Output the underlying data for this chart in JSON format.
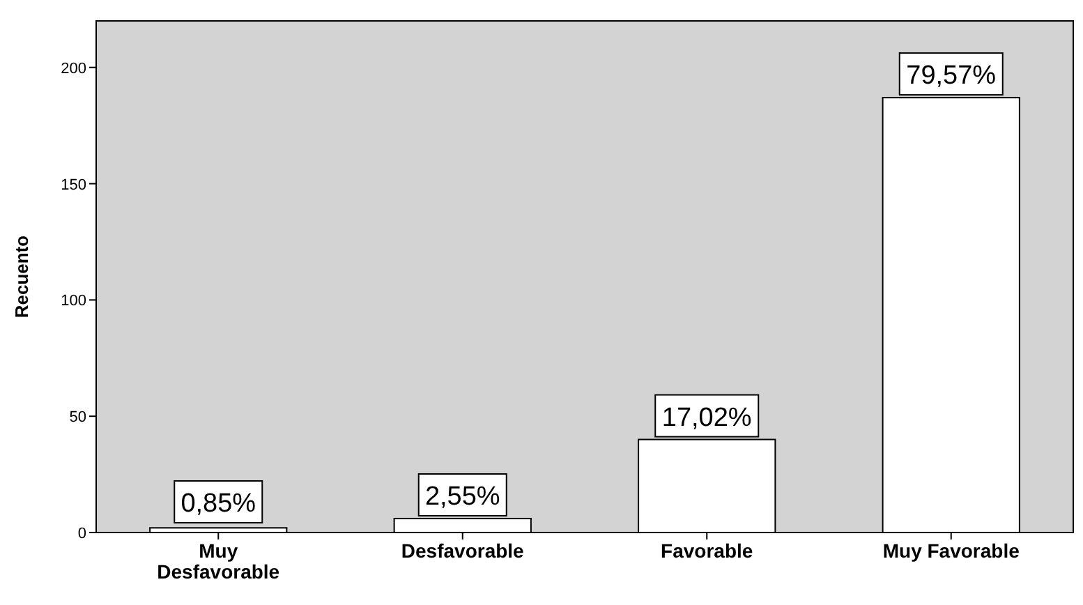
{
  "chart_data": {
    "type": "bar",
    "ylabel": "Recuento",
    "categories": [
      "Muy Desfavorable",
      "Desfavorable",
      "Favorable",
      "Muy Favorable"
    ],
    "values": [
      2,
      6,
      40,
      187
    ],
    "annotations": [
      "0,85%",
      "2,55%",
      "17,02%",
      "79,57%"
    ],
    "color": "#ffffff",
    "ylim": [
      0,
      220
    ],
    "yticks": [
      0,
      50,
      100,
      150,
      200
    ],
    "grid": false,
    "legend": false
  }
}
